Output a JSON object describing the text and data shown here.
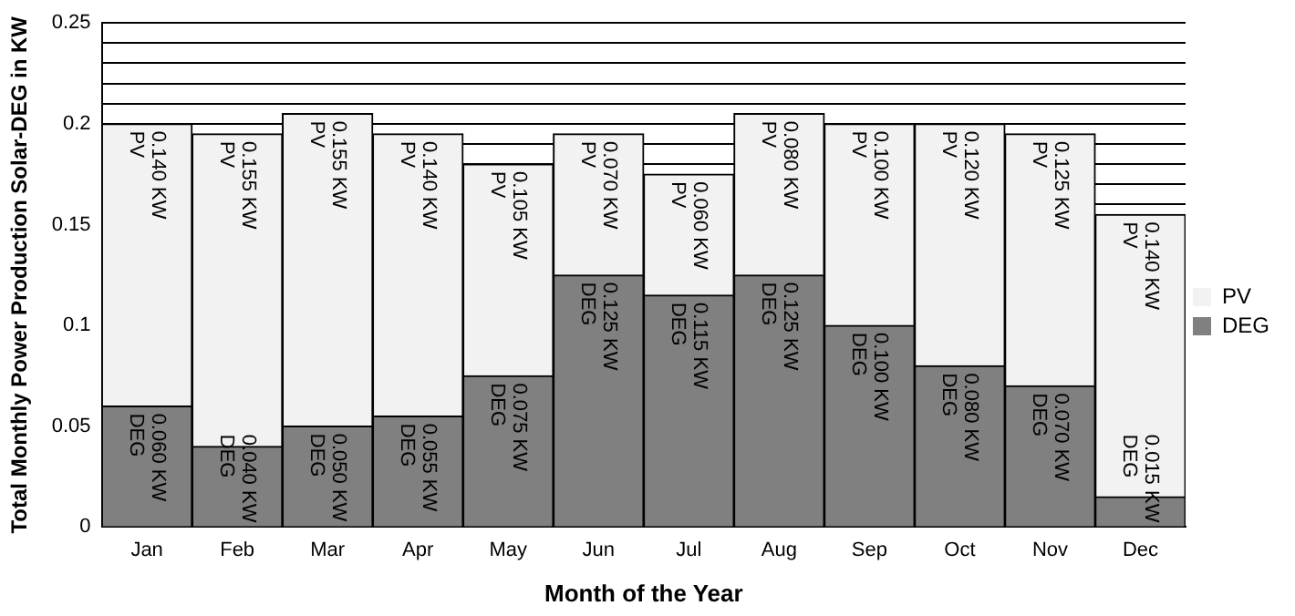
{
  "chart_data": {
    "type": "bar",
    "stacked": true,
    "xlabel": "Month of the Year",
    "ylabel": "Total Monthly Power Production Solar-DEG in KW",
    "categories": [
      "Jan",
      "Feb",
      "Mar",
      "Apr",
      "May",
      "Jun",
      "Jul",
      "Aug",
      "Sep",
      "Oct",
      "Nov",
      "Dec"
    ],
    "series": [
      {
        "name": "DEG",
        "color": "#808080",
        "values": [
          0.06,
          0.04,
          0.05,
          0.055,
          0.075,
          0.125,
          0.115,
          0.125,
          0.1,
          0.08,
          0.07,
          0.015
        ],
        "value_labels": [
          "0.060 KW",
          "0.040 KW",
          "0.050 KW",
          "0.055 KW",
          "0.075 KW",
          "0.125 KW",
          "0.115 KW",
          "0.125 KW",
          "0.100 KW",
          "0.080 KW",
          "0.070 KW",
          "0.015 KW"
        ]
      },
      {
        "name": "PV",
        "color": "#f2f2f2",
        "values": [
          0.14,
          0.155,
          0.155,
          0.14,
          0.105,
          0.07,
          0.06,
          0.08,
          0.1,
          0.12,
          0.125,
          0.14
        ],
        "value_labels": [
          "0.140 KW",
          "0.155 KW",
          "0.155 KW",
          "0.140 KW",
          "0.105 KW",
          "0.070 KW",
          "0.060 KW",
          "0.080 KW",
          "0.100 KW",
          "0.120 KW",
          "0.125 KW",
          "0.140 KW"
        ]
      }
    ],
    "ylim": [
      0,
      0.25
    ],
    "yticks": [
      0,
      0.05,
      0.1,
      0.15,
      {
        "value": 0.16,
        "label": null
      },
      {
        "value": 0.17,
        "label": null
      },
      {
        "value": 0.18,
        "label": null
      },
      {
        "value": 0.19,
        "label": null
      },
      0.2,
      {
        "value": 0.21,
        "label": null
      },
      {
        "value": 0.22,
        "label": null
      },
      {
        "value": 0.23,
        "label": null
      },
      {
        "value": 0.24,
        "label": null
      },
      0.25
    ],
    "grid": "y",
    "legend": "right"
  }
}
